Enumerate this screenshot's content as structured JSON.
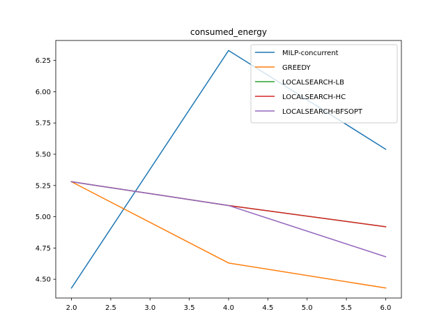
{
  "chart_data": {
    "type": "line",
    "title": "consumed_energy",
    "xlabel": "",
    "ylabel": "",
    "xlim": [
      1.8,
      6.2
    ],
    "ylim": [
      4.35,
      6.41
    ],
    "xticks": [
      2.0,
      2.5,
      3.0,
      3.5,
      4.0,
      4.5,
      5.0,
      5.5,
      6.0
    ],
    "xtick_labels": [
      "2.0",
      "2.5",
      "3.0",
      "3.5",
      "4.0",
      "4.5",
      "5.0",
      "5.5",
      "6.0"
    ],
    "yticks": [
      4.5,
      4.75,
      5.0,
      5.25,
      5.5,
      5.75,
      6.0,
      6.25
    ],
    "ytick_labels": [
      "4.50",
      "4.75",
      "5.00",
      "5.25",
      "5.50",
      "5.75",
      "6.00",
      "6.25"
    ],
    "grid": false,
    "legend_position": "top-right",
    "x": [
      2,
      4,
      6
    ],
    "series": [
      {
        "name": "MILP-concurrent",
        "color": "#1f77b4",
        "values": [
          4.43,
          6.33,
          5.54
        ]
      },
      {
        "name": "GREEDY",
        "color": "#ff7f0e",
        "values": [
          5.28,
          4.63,
          4.43
        ]
      },
      {
        "name": "LOCALSEARCH-LB",
        "color": "#2ca02c",
        "values": [
          5.28,
          5.09,
          4.92
        ]
      },
      {
        "name": "LOCALSEARCH-HC",
        "color": "#d62728",
        "values": [
          5.28,
          5.09,
          4.92
        ]
      },
      {
        "name": "LOCALSEARCH-BFSOPT",
        "color": "#9467bd",
        "values": [
          5.28,
          5.09,
          4.68
        ]
      }
    ]
  }
}
